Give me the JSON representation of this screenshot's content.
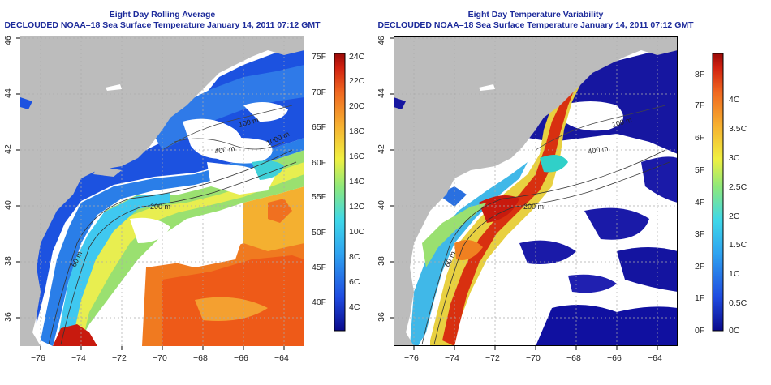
{
  "left_map": {
    "title_line1": "Eight Day Rolling Average",
    "title_line2": "DECLOUDED NOAA–18 Sea Surface Temperature January 14, 2011 07:12 GMT",
    "x_ticks": [
      "−76",
      "−74",
      "−72",
      "−70",
      "−68",
      "−66",
      "−64"
    ],
    "y_ticks": [
      "36",
      "38",
      "40",
      "42",
      "44",
      "46"
    ],
    "contour_labels": [
      "100 m",
      "400 m",
      "1000 m",
      "200 m",
      "60 m"
    ],
    "colorbar": {
      "f_labels": [
        "75F",
        "70F",
        "65F",
        "60F",
        "55F",
        "50F",
        "45F",
        "40F"
      ],
      "c_labels": [
        "24C",
        "22C",
        "20C",
        "18C",
        "16C",
        "14C",
        "12C",
        "10C",
        "8C",
        "6C",
        "4C"
      ],
      "colors": [
        "#0a0a8c",
        "#1f4be0",
        "#2fa4f0",
        "#3fd8e8",
        "#8ee87a",
        "#f0f040",
        "#f6b030",
        "#f06820",
        "#d02010",
        "#9a0a08"
      ]
    }
  },
  "right_map": {
    "title_line1": "Eight Day Temperature Variability",
    "title_line2": "DECLOUDED NOAA–18 Sea Surface Temperature January 14, 2011 07:12 GMT",
    "x_ticks": [
      "−76",
      "−74",
      "−72",
      "−70",
      "−68",
      "−66",
      "−64"
    ],
    "y_ticks": [
      "36",
      "38",
      "40",
      "42",
      "44",
      "46"
    ],
    "contour_labels": [
      "100 m",
      "400 m",
      "200 m",
      "60 m"
    ],
    "colorbar": {
      "f_labels": [
        "8F",
        "7F",
        "6F",
        "5F",
        "4F",
        "3F",
        "2F",
        "1F",
        "0F"
      ],
      "c_labels": [
        "4C",
        "3.5C",
        "3C",
        "2.5C",
        "2C",
        "1.5C",
        "1C",
        "0.5C",
        "0C"
      ],
      "colors": [
        "#0a0a8c",
        "#1f4be0",
        "#2fa4f0",
        "#3fd8e8",
        "#8ee87a",
        "#f0f040",
        "#f6b030",
        "#f06820",
        "#d02010",
        "#9a0a08"
      ]
    }
  },
  "colors": {
    "land": "#bcbcbc",
    "ocean_blank": "#ffffff",
    "title": "#1c2a9a"
  }
}
